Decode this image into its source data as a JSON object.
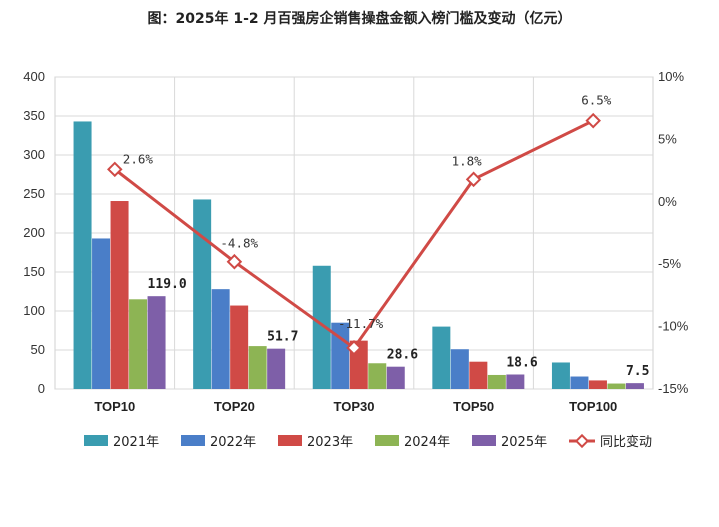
{
  "title": "图：2025年 1-2 月百强房企销售操盘金额入榜门槛及变动（亿元）",
  "chart_data": {
    "type": "bar",
    "categories": [
      "TOP10",
      "TOP20",
      "TOP30",
      "TOP50",
      "TOP100"
    ],
    "series": [
      {
        "name": "2021年",
        "color": "#3a9cb0",
        "values": [
          343,
          243,
          158,
          80,
          34
        ]
      },
      {
        "name": "2022年",
        "color": "#4a7ec8",
        "values": [
          193,
          128,
          85,
          51,
          16
        ]
      },
      {
        "name": "2023年",
        "color": "#d04a46",
        "values": [
          241,
          107,
          62,
          35,
          11
        ]
      },
      {
        "name": "2024年",
        "color": "#8db454",
        "values": [
          115,
          55,
          33,
          18,
          7
        ]
      },
      {
        "name": "2025年",
        "color": "#7e5fa8",
        "values": [
          119.0,
          51.7,
          28.6,
          18.6,
          7.5
        ]
      }
    ],
    "value_labels": [
      "119.0",
      "51.7",
      "28.6",
      "18.6",
      "7.5"
    ],
    "line_series": {
      "name": "同比变动",
      "color": "#d04a46",
      "values": [
        2.6,
        -4.8,
        -11.7,
        1.8,
        6.5
      ],
      "labels": [
        "2.6%",
        "-4.8%",
        "-11.7%",
        "1.8%",
        "6.5%"
      ]
    },
    "y_left": {
      "min": 0,
      "max": 400,
      "ticks": [
        0,
        50,
        100,
        150,
        200,
        250,
        300,
        350,
        400
      ]
    },
    "y_right": {
      "min": -15,
      "max": 10,
      "ticks": [
        -15,
        -10,
        -5,
        0,
        5,
        10
      ],
      "tick_labels": [
        "-15%",
        "-10%",
        "-5%",
        "0%",
        "5%",
        "10%"
      ]
    },
    "grid": true,
    "legend_position": "bottom"
  }
}
